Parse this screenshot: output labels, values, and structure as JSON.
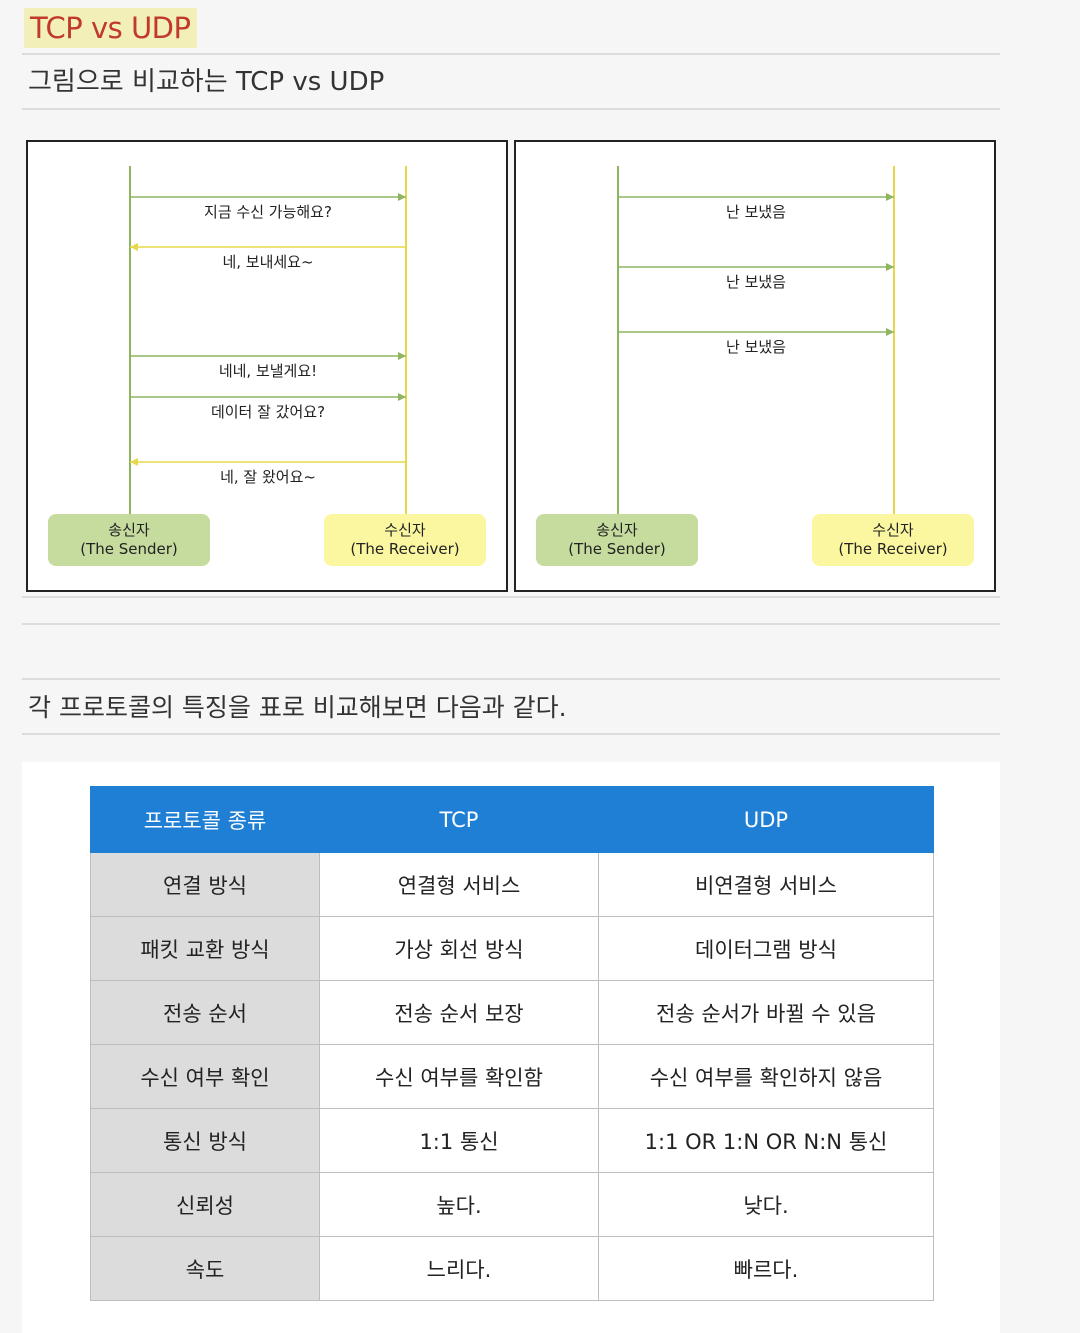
{
  "header": {
    "title": "TCP vs UDP",
    "subtitle": "그림으로 비교하는 TCP vs UDP"
  },
  "tcp_diagram": {
    "sender": {
      "name": "송신자",
      "en": "(The Sender)"
    },
    "receiver": {
      "name": "수신자",
      "en": "(The Receiver)"
    },
    "messages": [
      {
        "text": "지금 수신 가능해요?",
        "direction": "to-receiver"
      },
      {
        "text": "네, 보내세요~",
        "direction": "to-sender"
      },
      {
        "text": "네네, 보낼게요!",
        "direction": "to-receiver"
      },
      {
        "text": "데이터 잘 갔어요?",
        "direction": "to-receiver"
      },
      {
        "text": "네, 잘 왔어요~",
        "direction": "to-sender"
      }
    ]
  },
  "udp_diagram": {
    "sender": {
      "name": "송신자",
      "en": "(The Sender)"
    },
    "receiver": {
      "name": "수신자",
      "en": "(The Receiver)"
    },
    "messages": [
      {
        "text": "난 보냈음",
        "direction": "to-receiver"
      },
      {
        "text": "난 보냈음",
        "direction": "to-receiver"
      },
      {
        "text": "난 보냈음",
        "direction": "to-receiver"
      }
    ]
  },
  "caption": "각 프로토콜의 특징을 표로 비교해보면 다음과 같다.",
  "table": {
    "headers": [
      "프로토콜 종류",
      "TCP",
      "UDP"
    ],
    "rows": [
      [
        "연결 방식",
        "연결형 서비스",
        "비연결형 서비스"
      ],
      [
        "패킷 교환 방식",
        "가상 회선 방식",
        "데이터그램 방식"
      ],
      [
        "전송 순서",
        "전송 순서 보장",
        "전송 순서가 바뀔 수 있음"
      ],
      [
        "수신 여부 확인",
        "수신 여부를 확인함",
        "수신 여부를 확인하지 않음"
      ],
      [
        "통신 방식",
        "1:1 통신",
        "1:1 OR 1:N OR N:N 통신"
      ],
      [
        "신뢰성",
        "높다.",
        "낮다."
      ],
      [
        "속도",
        "느리다.",
        "빠르다."
      ]
    ]
  },
  "colors": {
    "title_text": "#c0392b",
    "title_highlight": "#f3efb9",
    "sender_box": "#c6dc9f",
    "receiver_box": "#fbf7a0",
    "to_receiver_arrow": "#8db560",
    "to_sender_arrow": "#e6d84a",
    "table_header": "#1f7fd4",
    "table_rowhead": "#dcdcdc"
  }
}
